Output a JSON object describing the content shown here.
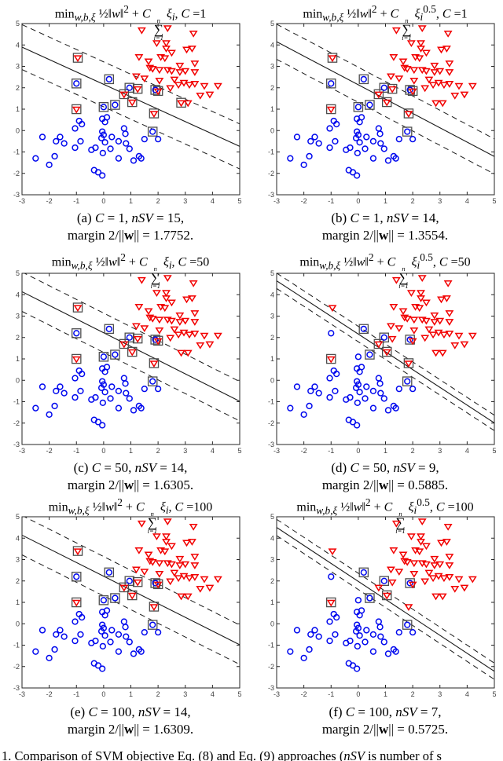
{
  "colors": {
    "class_blue": "#0008ee",
    "class_red": "#f20000",
    "sv_box": "#4d4d4d",
    "line": "#1a1a1a",
    "axis_box": "#262626",
    "tick_label": "#404040",
    "background": "#ffffff"
  },
  "axes": {
    "xlim": [
      -3,
      5
    ],
    "ylim": [
      -3,
      5
    ],
    "xticks": [
      "-3",
      "-2",
      "-1",
      "0",
      "1",
      "2",
      "3",
      "4",
      "5"
    ],
    "yticks": [
      "5",
      "4",
      "3",
      "2",
      "1",
      "0",
      "-1",
      "-2",
      "-3"
    ],
    "grid": false
  },
  "dataset": {
    "legend": "blue = circles (class 1), red = downward triangles (class 2); identical data in all six subplots; squares mark support vectors",
    "blue": [
      [
        -2.25,
        -0.3
      ],
      [
        -2.5,
        -1.3
      ],
      [
        -2.0,
        -1.6
      ],
      [
        -1.8,
        -1.2
      ],
      [
        -1.75,
        -0.5
      ],
      [
        -1.6,
        -0.3
      ],
      [
        -1.45,
        -0.6
      ],
      [
        -1.0,
        2.2
      ],
      [
        -1.05,
        0.1
      ],
      [
        -0.9,
        0.45
      ],
      [
        -0.8,
        0.3
      ],
      [
        -0.85,
        -0.5
      ],
      [
        -1.05,
        -0.8
      ],
      [
        -0.45,
        -0.9
      ],
      [
        -0.3,
        -0.8
      ],
      [
        -0.35,
        -1.85
      ],
      [
        -0.2,
        -1.95
      ],
      [
        -0.05,
        -2.1
      ],
      [
        -0.05,
        0.55
      ],
      [
        0.05,
        0.4
      ],
      [
        0.12,
        0.62
      ],
      [
        -0.05,
        -0.05
      ],
      [
        0.0,
        -0.2
      ],
      [
        -0.08,
        -0.35
      ],
      [
        0.05,
        -0.55
      ],
      [
        -0.03,
        -1.05
      ],
      [
        0.25,
        -0.85
      ],
      [
        0.3,
        -0.3
      ],
      [
        0.55,
        -0.5
      ],
      [
        0.55,
        -1.3
      ],
      [
        0.2,
        2.4
      ],
      [
        0.0,
        1.1
      ],
      [
        0.42,
        1.2
      ],
      [
        0.95,
        2.0
      ],
      [
        1.9,
        1.9
      ],
      [
        1.8,
        -0.05
      ],
      [
        0.75,
        0.1
      ],
      [
        0.8,
        -0.15
      ],
      [
        0.82,
        -0.6
      ],
      [
        0.95,
        -0.85
      ],
      [
        1.1,
        -1.4
      ],
      [
        1.3,
        -1.2
      ],
      [
        1.38,
        -1.3
      ],
      [
        1.5,
        -0.4
      ],
      [
        2.0,
        -0.4
      ]
    ],
    "red": [
      [
        1.4,
        4.7
      ],
      [
        2.35,
        4.8
      ],
      [
        3.3,
        4.55
      ],
      [
        1.95,
        4.1
      ],
      [
        2.3,
        4.1
      ],
      [
        2.3,
        3.85
      ],
      [
        2.5,
        3.65
      ],
      [
        3.05,
        3.8
      ],
      [
        3.25,
        3.85
      ],
      [
        -0.95,
        3.4
      ],
      [
        1.3,
        3.45
      ],
      [
        2.1,
        3.45
      ],
      [
        2.25,
        3.4
      ],
      [
        1.65,
        3.25
      ],
      [
        2.8,
        3.05
      ],
      [
        3.35,
        3.15
      ],
      [
        1.7,
        2.95
      ],
      [
        1.8,
        2.9
      ],
      [
        2.05,
        2.85
      ],
      [
        2.35,
        2.85
      ],
      [
        2.5,
        2.8
      ],
      [
        2.8,
        2.75
      ],
      [
        3.0,
        2.8
      ],
      [
        3.35,
        2.75
      ],
      [
        1.2,
        2.55
      ],
      [
        1.5,
        2.45
      ],
      [
        2.05,
        2.35
      ],
      [
        2.45,
        2.0
      ],
      [
        2.75,
        2.15
      ],
      [
        2.95,
        2.25
      ],
      [
        3.15,
        2.15
      ],
      [
        3.35,
        2.2
      ],
      [
        3.7,
        2.1
      ],
      [
        4.2,
        2.1
      ],
      [
        2.85,
        1.3
      ],
      [
        3.1,
        1.3
      ],
      [
        3.55,
        1.65
      ],
      [
        3.9,
        1.7
      ],
      [
        -1.0,
        1.0
      ],
      [
        0.75,
        1.7
      ],
      [
        1.05,
        1.33
      ],
      [
        1.25,
        1.95
      ],
      [
        2.0,
        1.85
      ],
      [
        1.85,
        0.8
      ],
      [
        2.6,
        2.4
      ]
    ]
  },
  "chart_data": [
    {
      "id": "a",
      "type": "scatter",
      "C": 1,
      "nSV": 15,
      "margin": 1.7752,
      "title_html": "min<sub><i>w,b,ξ</i></sub> ½‖<i>w</i>‖<sup>2</sup> + <i>C</i> <span class=\"sum\"><span><i>n</i></span><span class=\"s\">∑</span><span><i>i</i>=1</span></span> <i>ξ<sub>i</sub></i>,  <i>C</i> =1",
      "caption_line1": "(a) <i>C</i> = 1, <i>nSV</i> = 15,",
      "caption_line2": "margin 2/||<b>w</b>|| = 1.7752.",
      "boundary": {
        "slope": -0.58,
        "intercept": 2.16,
        "margin_vertical_offset": 1.05
      },
      "sv_blue": [
        7,
        30,
        31,
        32,
        33,
        34,
        35
      ],
      "sv_red": [
        9,
        38,
        39,
        40,
        41,
        42,
        43,
        34
      ]
    },
    {
      "id": "b",
      "type": "scatter",
      "C": 1,
      "nSV": 14,
      "margin": 1.3554,
      "title_html": "min<sub><i>w,b,ξ</i></sub> ½‖<i>w</i>‖<sup>2</sup> + <i>C</i> <span class=\"sum\"><span><i>n</i></span><span class=\"s\">∑</span><span><i>i</i>=1</span></span> <i>ξ<sub>i</sub></i><sup>0.5</sup>,  <i>C</i> =1",
      "caption_line1": "(b) <i>C</i> = 1, <i>nSV</i> = 14,",
      "caption_line2": "margin 2/||<b>w</b>|| = 1.3554.",
      "boundary": {
        "slope": -0.67,
        "intercept": 2.14,
        "margin_vertical_offset": 0.82
      },
      "sv_blue": [
        7,
        30,
        31,
        32,
        33,
        34,
        35
      ],
      "sv_red": [
        9,
        38,
        39,
        40,
        41,
        42,
        43
      ]
    },
    {
      "id": "c",
      "type": "scatter",
      "C": 50,
      "nSV": 14,
      "margin": 1.6305,
      "title_html": "min<sub><i>w,b,ξ</i></sub> ½‖<i>w</i>‖<sup>2</sup> + <i>C</i> <span class=\"sum\"><span><i>n</i></span><span class=\"s\">∑</span><span><i>i</i>=1</span></span> <i>ξ<sub>i</sub></i>,  <i>C</i> =50",
      "caption_line1": "(c) <i>C</i> = 50, <i>nSV</i> = 14,",
      "caption_line2": "margin 2/||<b>w</b>|| = 1.6305.",
      "boundary": {
        "slope": -0.64,
        "intercept": 2.22,
        "margin_vertical_offset": 0.92
      },
      "sv_blue": [
        7,
        30,
        31,
        32,
        33,
        34,
        35
      ],
      "sv_red": [
        9,
        38,
        39,
        40,
        41,
        42,
        43
      ]
    },
    {
      "id": "d",
      "type": "scatter",
      "C": 50,
      "nSV": 9,
      "margin": 0.5885,
      "title_html": "min<sub><i>w,b,ξ</i></sub> ½‖<i>w</i>‖<sup>2</sup> + <i>C</i> <span class=\"sum\"><span><i>n</i></span><span class=\"s\">∑</span><span><i>i</i>=1</span></span> <i>ξ<sub>i</sub></i><sup>0.5</sup>,  <i>C</i> =50",
      "caption_line1": "(d) <i>C</i> = 50, <i>nSV</i> = 9,",
      "caption_line2": "margin 2/||<b>w</b>|| = 0.5885.",
      "boundary": {
        "slope": -0.83,
        "intercept": 2.16,
        "margin_vertical_offset": 0.36
      },
      "sv_blue": [
        30,
        32,
        33,
        34,
        35
      ],
      "sv_red": [
        38,
        39,
        40,
        43
      ]
    },
    {
      "id": "e",
      "type": "scatter",
      "C": 100,
      "nSV": 14,
      "margin": 1.6309,
      "title_html": "min<sub><i>w,b,ξ</i></sub> ½‖<i>w</i>‖<sup>2</sup> + <i>C</i> <span class=\"sum\"><span><i>n</i></span><span class=\"s\">∑</span><span><i>i</i>=1</span></span> <i>ξ<sub>i</sub></i>,  <i>C</i> =100",
      "caption_line1": "(e) <i>C</i> = 100, <i>nSV</i> = 14,",
      "caption_line2": "margin 2/||<b>w</b>|| = 1.6309.",
      "boundary": {
        "slope": -0.64,
        "intercept": 2.22,
        "margin_vertical_offset": 0.92
      },
      "sv_blue": [
        7,
        30,
        31,
        32,
        33,
        34,
        35
      ],
      "sv_red": [
        9,
        38,
        39,
        40,
        41,
        42,
        43
      ]
    },
    {
      "id": "f",
      "type": "scatter",
      "C": 100,
      "nSV": 7,
      "margin": 0.5725,
      "title_html": "min<sub><i>w,b,ξ</i></sub> ½‖<i>w</i>‖<sup>2</sup> + <i>C</i> <span class=\"sum\"><span><i>n</i></span><span class=\"s\">∑</span><span><i>i</i>=1</span></span> <i>ξ<sub>i</sub></i><sup>0.5</sup>,  <i>C</i> =100",
      "caption_line1": "(f) <i>C</i> = 100, <i>nSV</i> = 7,",
      "caption_line2": "margin 2/||<b>w</b>|| = 0.5725.",
      "boundary": {
        "slope": -0.84,
        "intercept": 1.98,
        "margin_vertical_offset": 0.38
      },
      "sv_blue": [
        30,
        32,
        33,
        34,
        35
      ],
      "sv_red": [
        38,
        40
      ]
    }
  ],
  "bottom_caption_html": "1. Comparison of SVM objective Eq. (8) and Eq. (9) approaches (<i>nSV</i> is number of s",
  "layout_positions": {
    "note": "six subplots, 2 columns x 3 rows"
  }
}
